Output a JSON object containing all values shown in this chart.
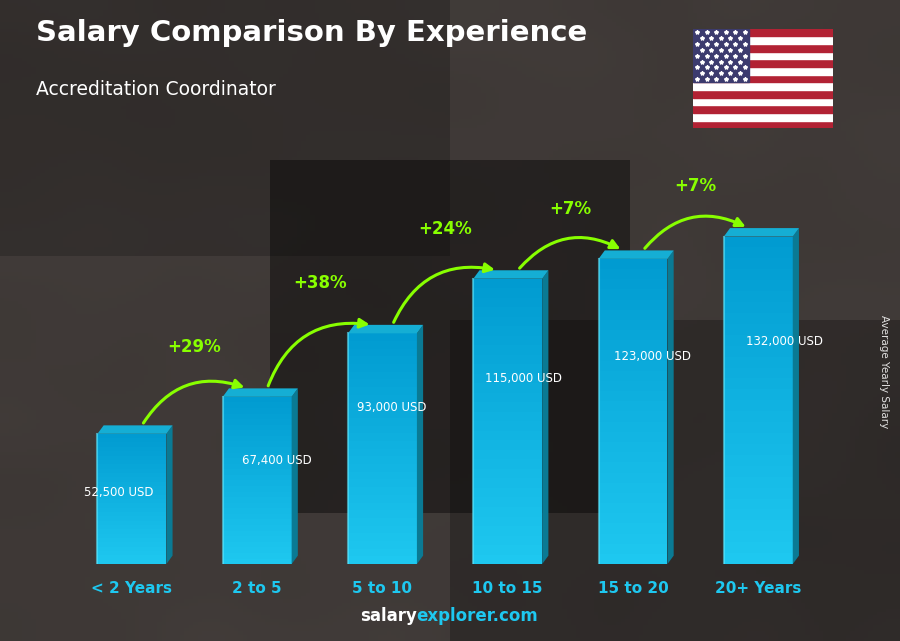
{
  "title": "Salary Comparison By Experience",
  "subtitle": "Accreditation Coordinator",
  "ylabel": "Average Yearly Salary",
  "categories": [
    "< 2 Years",
    "2 to 5",
    "5 to 10",
    "10 to 15",
    "15 to 20",
    "20+ Years"
  ],
  "values": [
    52500,
    67400,
    93000,
    115000,
    123000,
    132000
  ],
  "salary_labels": [
    "52,500 USD",
    "67,400 USD",
    "93,000 USD",
    "115,000 USD",
    "123,000 USD",
    "132,000 USD"
  ],
  "pct_labels": [
    "+29%",
    "+38%",
    "+24%",
    "+7%",
    "+7%"
  ],
  "bar_front_color": "#1ec8f0",
  "bar_side_color": "#0a7a94",
  "bar_top_color": "#15aed4",
  "bg_color": "#5a5a5a",
  "title_color": "#ffffff",
  "subtitle_color": "#ffffff",
  "label_color": "#ffffff",
  "pct_color": "#88ff00",
  "arrow_color": "#88ff00",
  "tick_color": "#1ec8f0",
  "watermark_salary_color": "#ffffff",
  "watermark_explorer_color": "#1ec8f0",
  "ylim": [
    0,
    155000
  ],
  "figsize": [
    9.0,
    6.41
  ],
  "dpi": 100
}
